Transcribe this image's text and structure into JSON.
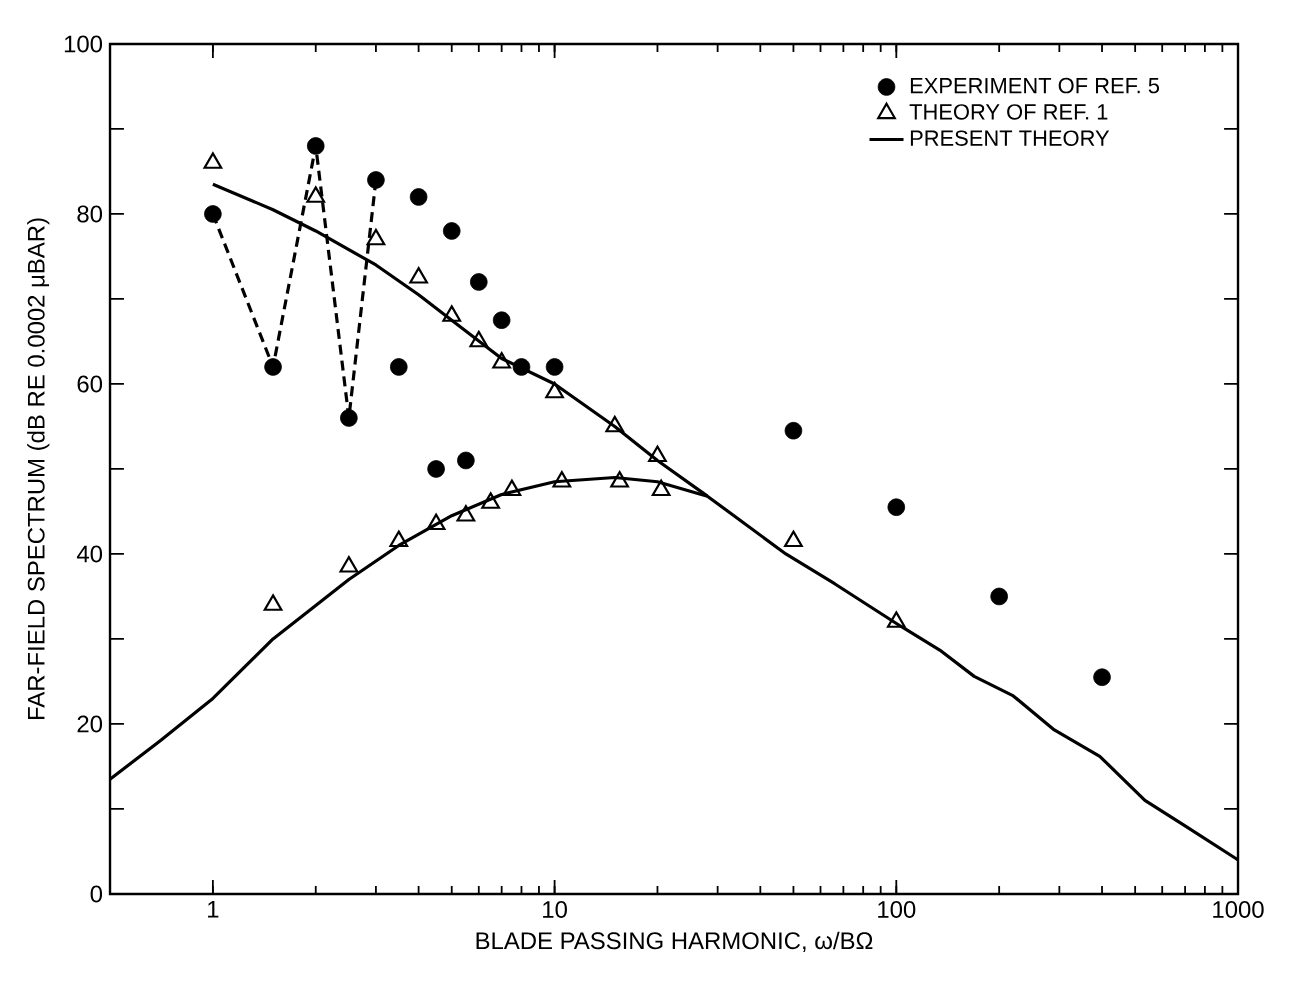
{
  "chart_data": {
    "type": "scatter",
    "xlabel": "BLADE PASSING HARMONIC, ω/BΩ",
    "ylabel": "FAR-FIELD SPECTRUM (dB RE 0.0002 μBAR)",
    "log": "x",
    "xlim": [
      0.5,
      1000
    ],
    "xticks": [
      1,
      10,
      100,
      1000
    ],
    "ylim": [
      0,
      100
    ],
    "yticks": [
      0,
      {
        "value": 10,
        "label": null
      },
      20,
      {
        "value": 30,
        "label": null
      },
      40,
      {
        "value": 50,
        "label": null
      },
      60,
      {
        "value": 70,
        "label": null
      },
      80,
      {
        "value": 90,
        "label": null
      },
      100
    ],
    "legend": "top right",
    "series": [
      {
        "name": "EXPERIMENT OF REF. 5",
        "marker": "circle",
        "color": "#000000",
        "x": [
          1,
          1.5,
          2,
          2.5,
          3,
          3.5,
          4,
          4.5,
          5,
          5.5,
          6,
          7,
          8,
          10,
          50,
          100,
          200,
          400
        ],
        "values": [
          80,
          62,
          88,
          56,
          84,
          62,
          82,
          50,
          78,
          51,
          72,
          67.5,
          62,
          62,
          54.5,
          45.5,
          35,
          25.5
        ]
      },
      {
        "type": "line",
        "marker": "none",
        "line_style": "dashed",
        "color": "#000000",
        "x": [
          1,
          1.5,
          2,
          2.5,
          3
        ],
        "values": [
          80,
          62,
          88,
          56,
          84
        ]
      },
      {
        "name": "THEORY OF REF. 1",
        "type": "scatter",
        "marker": "triangle",
        "color": "#000000",
        "x": [
          1,
          1.5,
          2,
          2.5,
          3,
          3.5,
          4,
          4.5,
          5,
          5.5,
          6,
          6.5,
          7,
          7.5,
          10,
          10.5,
          15,
          15.5,
          20,
          20.5,
          50,
          100
        ],
        "values": [
          86,
          34,
          82,
          38.5,
          77,
          41.5,
          72.5,
          43.5,
          68,
          44.5,
          65,
          46,
          62.5,
          47.5,
          59,
          48.5,
          55,
          48.5,
          51.5,
          47.5,
          41.5,
          32
        ]
      },
      {
        "name": "PRESENT THEORY",
        "type": "line",
        "marker": "none",
        "line_style": "solid",
        "color": "#000000",
        "x": [
          1,
          1.5,
          2,
          3,
          4,
          5,
          7,
          10,
          15,
          20,
          28
        ],
        "values": [
          83.5,
          80.5,
          78,
          74,
          70.5,
          67.5,
          63,
          60,
          55,
          51,
          46.8
        ]
      },
      {
        "type": "line",
        "marker": "none",
        "line_style": "solid",
        "color": "#000000",
        "x": [
          0.5,
          0.7,
          1,
          1.5,
          2.5,
          3.5,
          5,
          7,
          10,
          15,
          20,
          28,
          47.5,
          66,
          103,
          134,
          169,
          220,
          290,
          394,
          534,
          700,
          983,
          1000
        ],
        "values": [
          13.5,
          18,
          23,
          30,
          37,
          41,
          44.5,
          47,
          48.5,
          49,
          48.5,
          46.8,
          40,
          36.5,
          31.5,
          28.7,
          25.6,
          23.3,
          19.3,
          16.2,
          11,
          8,
          4.2,
          4
        ]
      }
    ]
  }
}
